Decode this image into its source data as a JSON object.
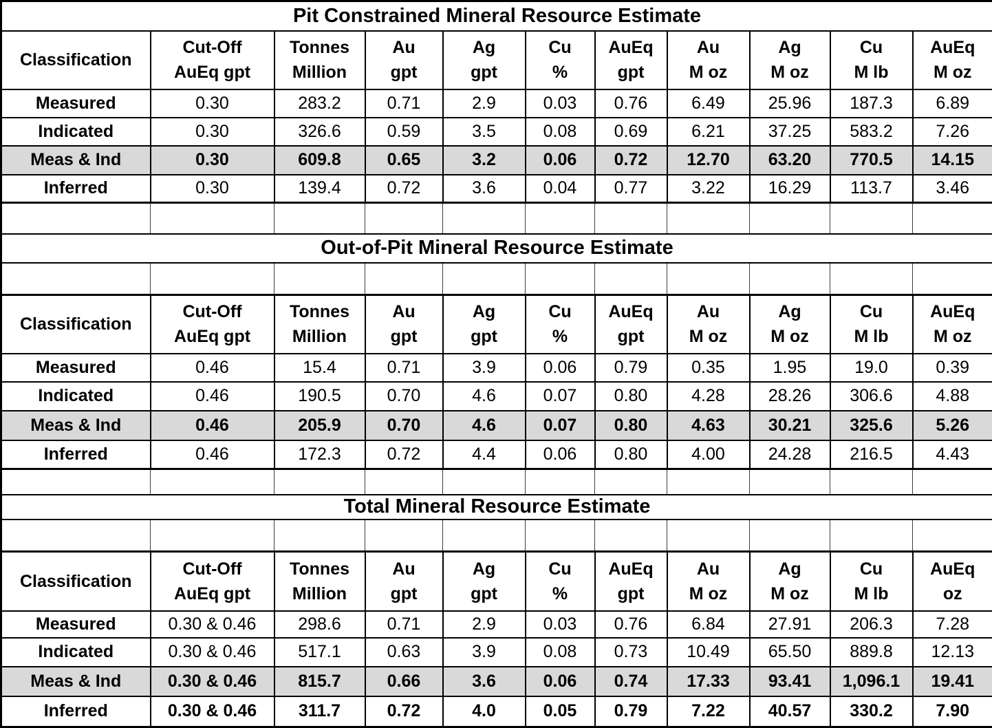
{
  "styles": {
    "highlight_fill": "#d9d9d9",
    "grid_color": "#000000",
    "text_color": "#000000",
    "background": "#ffffff"
  },
  "tables": [
    {
      "title": "Pit Constrained Mineral Resource Estimate",
      "headers": {
        "classification": "Classification",
        "columns": [
          {
            "line1": "Cut-Off",
            "line2": "AuEq gpt"
          },
          {
            "line1": "Tonnes",
            "line2": "Million"
          },
          {
            "line1": "Au",
            "line2": "gpt"
          },
          {
            "line1": "Ag",
            "line2": "gpt"
          },
          {
            "line1": "Cu",
            "line2": "%"
          },
          {
            "line1": "AuEq",
            "line2": "gpt"
          },
          {
            "line1": "Au",
            "line2": "M oz"
          },
          {
            "line1": "Ag",
            "line2": "M oz"
          },
          {
            "line1": "Cu",
            "line2": "M lb"
          },
          {
            "line1": "AuEq",
            "line2": "M oz"
          }
        ]
      },
      "rows": [
        {
          "classification": "Measured",
          "highlight": false,
          "bold": false,
          "values": [
            "0.30",
            "283.2",
            "0.71",
            "2.9",
            "0.03",
            "0.76",
            "6.49",
            "25.96",
            "187.3",
            "6.89"
          ]
        },
        {
          "classification": "Indicated",
          "highlight": false,
          "bold": false,
          "values": [
            "0.30",
            "326.6",
            "0.59",
            "3.5",
            "0.08",
            "0.69",
            "6.21",
            "37.25",
            "583.2",
            "7.26"
          ]
        },
        {
          "classification": "Meas & Ind",
          "highlight": true,
          "bold": true,
          "values": [
            "0.30",
            "609.8",
            "0.65",
            "3.2",
            "0.06",
            "0.72",
            "12.70",
            "63.20",
            "770.5",
            "14.15"
          ]
        },
        {
          "classification": "Inferred",
          "highlight": false,
          "bold": false,
          "values": [
            "0.30",
            "139.4",
            "0.72",
            "3.6",
            "0.04",
            "0.77",
            "3.22",
            "16.29",
            "113.7",
            "3.46"
          ]
        }
      ]
    },
    {
      "title": "Out-of-Pit Mineral Resource Estimate",
      "headers": {
        "classification": "Classification",
        "columns": [
          {
            "line1": "Cut-Off",
            "line2": "AuEq gpt"
          },
          {
            "line1": "Tonnes",
            "line2": "Million"
          },
          {
            "line1": "Au",
            "line2": "gpt"
          },
          {
            "line1": "Ag",
            "line2": "gpt"
          },
          {
            "line1": "Cu",
            "line2": "%"
          },
          {
            "line1": "AuEq",
            "line2": "gpt"
          },
          {
            "line1": "Au",
            "line2": "M oz"
          },
          {
            "line1": "Ag",
            "line2": "M oz"
          },
          {
            "line1": "Cu",
            "line2": "M lb"
          },
          {
            "line1": "AuEq",
            "line2": "M oz"
          }
        ]
      },
      "rows": [
        {
          "classification": "Measured",
          "highlight": false,
          "bold": false,
          "values": [
            "0.46",
            "15.4",
            "0.71",
            "3.9",
            "0.06",
            "0.79",
            "0.35",
            "1.95",
            "19.0",
            "0.39"
          ]
        },
        {
          "classification": "Indicated",
          "highlight": false,
          "bold": false,
          "values": [
            "0.46",
            "190.5",
            "0.70",
            "4.6",
            "0.07",
            "0.80",
            "4.28",
            "28.26",
            "306.6",
            "4.88"
          ]
        },
        {
          "classification": "Meas & Ind",
          "highlight": true,
          "bold": true,
          "values": [
            "0.46",
            "205.9",
            "0.70",
            "4.6",
            "0.07",
            "0.80",
            "4.63",
            "30.21",
            "325.6",
            "5.26"
          ]
        },
        {
          "classification": "Inferred",
          "highlight": false,
          "bold": false,
          "values": [
            "0.46",
            "172.3",
            "0.72",
            "4.4",
            "0.06",
            "0.80",
            "4.00",
            "24.28",
            "216.5",
            "4.43"
          ]
        }
      ]
    },
    {
      "title": "Total Mineral Resource Estimate",
      "headers": {
        "classification": "Classification",
        "columns": [
          {
            "line1": "Cut-Off",
            "line2": "AuEq gpt"
          },
          {
            "line1": "Tonnes",
            "line2": "Million"
          },
          {
            "line1": "Au",
            "line2": "gpt"
          },
          {
            "line1": "Ag",
            "line2": "gpt"
          },
          {
            "line1": "Cu",
            "line2": "%"
          },
          {
            "line1": "AuEq",
            "line2": "gpt"
          },
          {
            "line1": "Au",
            "line2": "M oz"
          },
          {
            "line1": "Ag",
            "line2": "M oz"
          },
          {
            "line1": "Cu",
            "line2": "M lb"
          },
          {
            "line1": "AuEq",
            "line2": "oz"
          }
        ]
      },
      "rows": [
        {
          "classification": "Measured",
          "highlight": false,
          "bold": false,
          "values": [
            "0.30 & 0.46",
            "298.6",
            "0.71",
            "2.9",
            "0.03",
            "0.76",
            "6.84",
            "27.91",
            "206.3",
            "7.28"
          ]
        },
        {
          "classification": "Indicated",
          "highlight": false,
          "bold": false,
          "values": [
            "0.30 & 0.46",
            "517.1",
            "0.63",
            "3.9",
            "0.08",
            "0.73",
            "10.49",
            "65.50",
            "889.8",
            "12.13"
          ]
        },
        {
          "classification": "Meas & Ind",
          "highlight": true,
          "bold": true,
          "values": [
            "0.30 & 0.46",
            "815.7",
            "0.66",
            "3.6",
            "0.06",
            "0.74",
            "17.33",
            "93.41",
            "1,096.1",
            "19.41"
          ]
        },
        {
          "classification": "Inferred",
          "highlight": false,
          "bold": true,
          "values": [
            "0.30 & 0.46",
            "311.7",
            "0.72",
            "4.0",
            "0.05",
            "0.79",
            "7.22",
            "40.57",
            "330.2",
            "7.90"
          ]
        }
      ]
    }
  ]
}
